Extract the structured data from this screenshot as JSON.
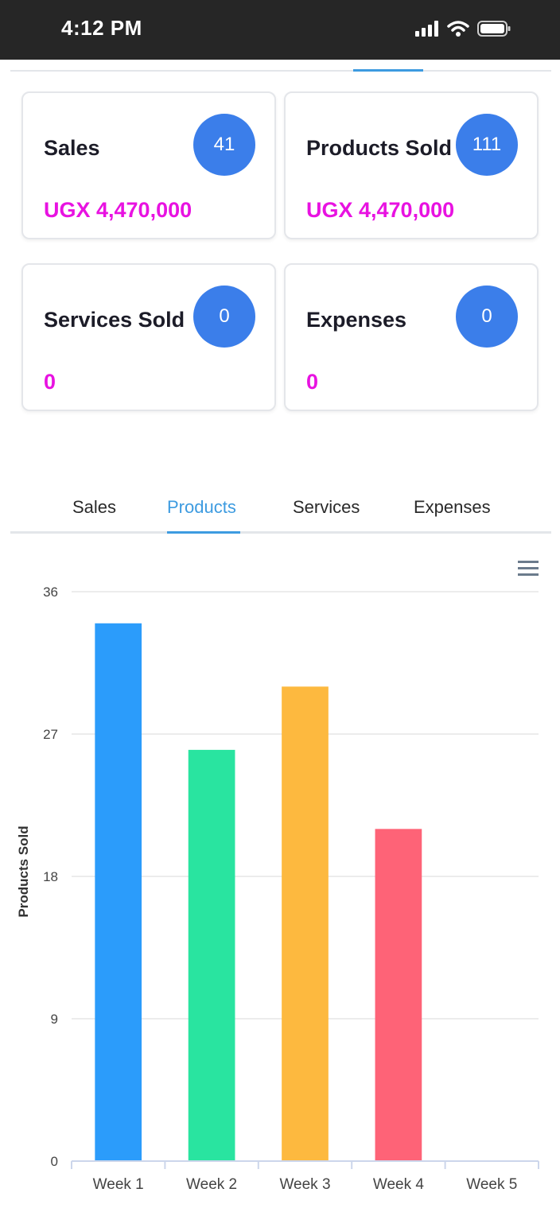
{
  "status_bar": {
    "time": "4:12 PM"
  },
  "cards": [
    {
      "title": "Sales",
      "count": "41",
      "value": "UGX 4,470,000"
    },
    {
      "title": "Products Sold",
      "count": "111",
      "value": "UGX 4,470,000"
    },
    {
      "title": "Services Sold",
      "count": "0",
      "value": "0"
    },
    {
      "title": "Expenses",
      "count": "0",
      "value": "0"
    }
  ],
  "tabs": [
    {
      "label": "Sales"
    },
    {
      "label": "Products"
    },
    {
      "label": "Services"
    },
    {
      "label": "Expenses"
    }
  ],
  "active_tab": "Products",
  "colors": {
    "accent": "#3d9be0",
    "badge": "#3b7eea",
    "value_text": "#e812e1"
  },
  "chart_data": {
    "type": "bar",
    "title": "",
    "xlabel": "",
    "ylabel": "Products Sold",
    "ylim": [
      0,
      36
    ],
    "yticks": [
      0,
      9,
      18,
      27,
      36
    ],
    "categories": [
      "Week 1",
      "Week 2",
      "Week 3",
      "Week 4",
      "Week 5"
    ],
    "values": [
      34,
      26,
      30,
      21,
      0
    ],
    "colors": [
      "#2b9cfb",
      "#29e4a0",
      "#fdb93f",
      "#fe6377",
      "#8b75d7"
    ],
    "grid": true,
    "legend": "none"
  }
}
